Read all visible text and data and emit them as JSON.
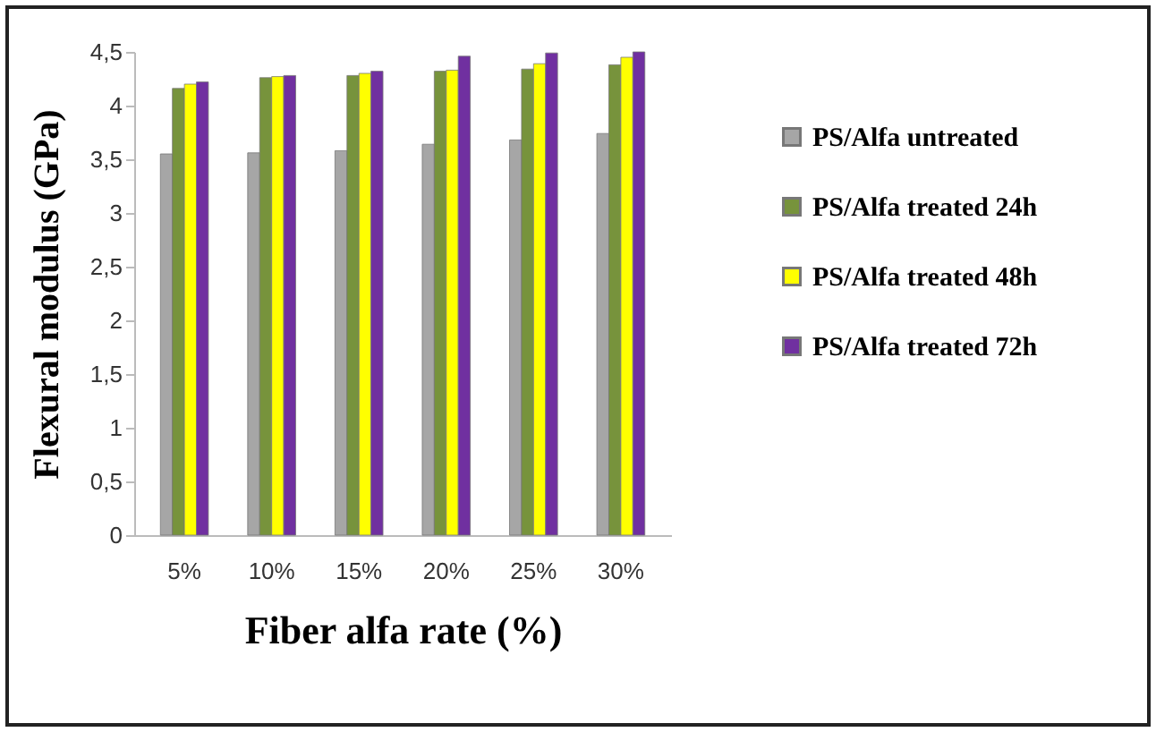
{
  "chart_data": {
    "type": "bar",
    "xlabel": "Fiber alfa rate (%)",
    "ylabel": "Flexural modulus (GPa)",
    "categories": [
      "5%",
      "10%",
      "15%",
      "20%",
      "25%",
      "30%"
    ],
    "series": [
      {
        "name": "PS/Alfa untreated",
        "color": "#a6a6a6",
        "values": [
          3.55,
          3.56,
          3.58,
          3.64,
          3.68,
          3.74
        ]
      },
      {
        "name": "PS/Alfa treated 24h",
        "color": "#77933c",
        "values": [
          4.16,
          4.26,
          4.28,
          4.32,
          4.34,
          4.38
        ]
      },
      {
        "name": "PS/Alfa treated 48h",
        "color": "#ffff00",
        "values": [
          4.2,
          4.27,
          4.3,
          4.33,
          4.39,
          4.45
        ]
      },
      {
        "name": "PS/Alfa treated 72h",
        "color": "#7030a0",
        "values": [
          4.22,
          4.28,
          4.32,
          4.46,
          4.49,
          4.5
        ]
      }
    ],
    "ylim": [
      0,
      4.5
    ],
    "yticks": [
      {
        "value": 0,
        "label": "0"
      },
      {
        "value": 0.5,
        "label": "0,5"
      },
      {
        "value": 1,
        "label": "1"
      },
      {
        "value": 1.5,
        "label": "1,5"
      },
      {
        "value": 2,
        "label": "2"
      },
      {
        "value": 2.5,
        "label": "2,5"
      },
      {
        "value": 3,
        "label": "3"
      },
      {
        "value": 3.5,
        "label": "3,5"
      },
      {
        "value": 4,
        "label": "4"
      },
      {
        "value": 4.5,
        "label": "4,5"
      }
    ],
    "grid": false,
    "legend": "right"
  }
}
